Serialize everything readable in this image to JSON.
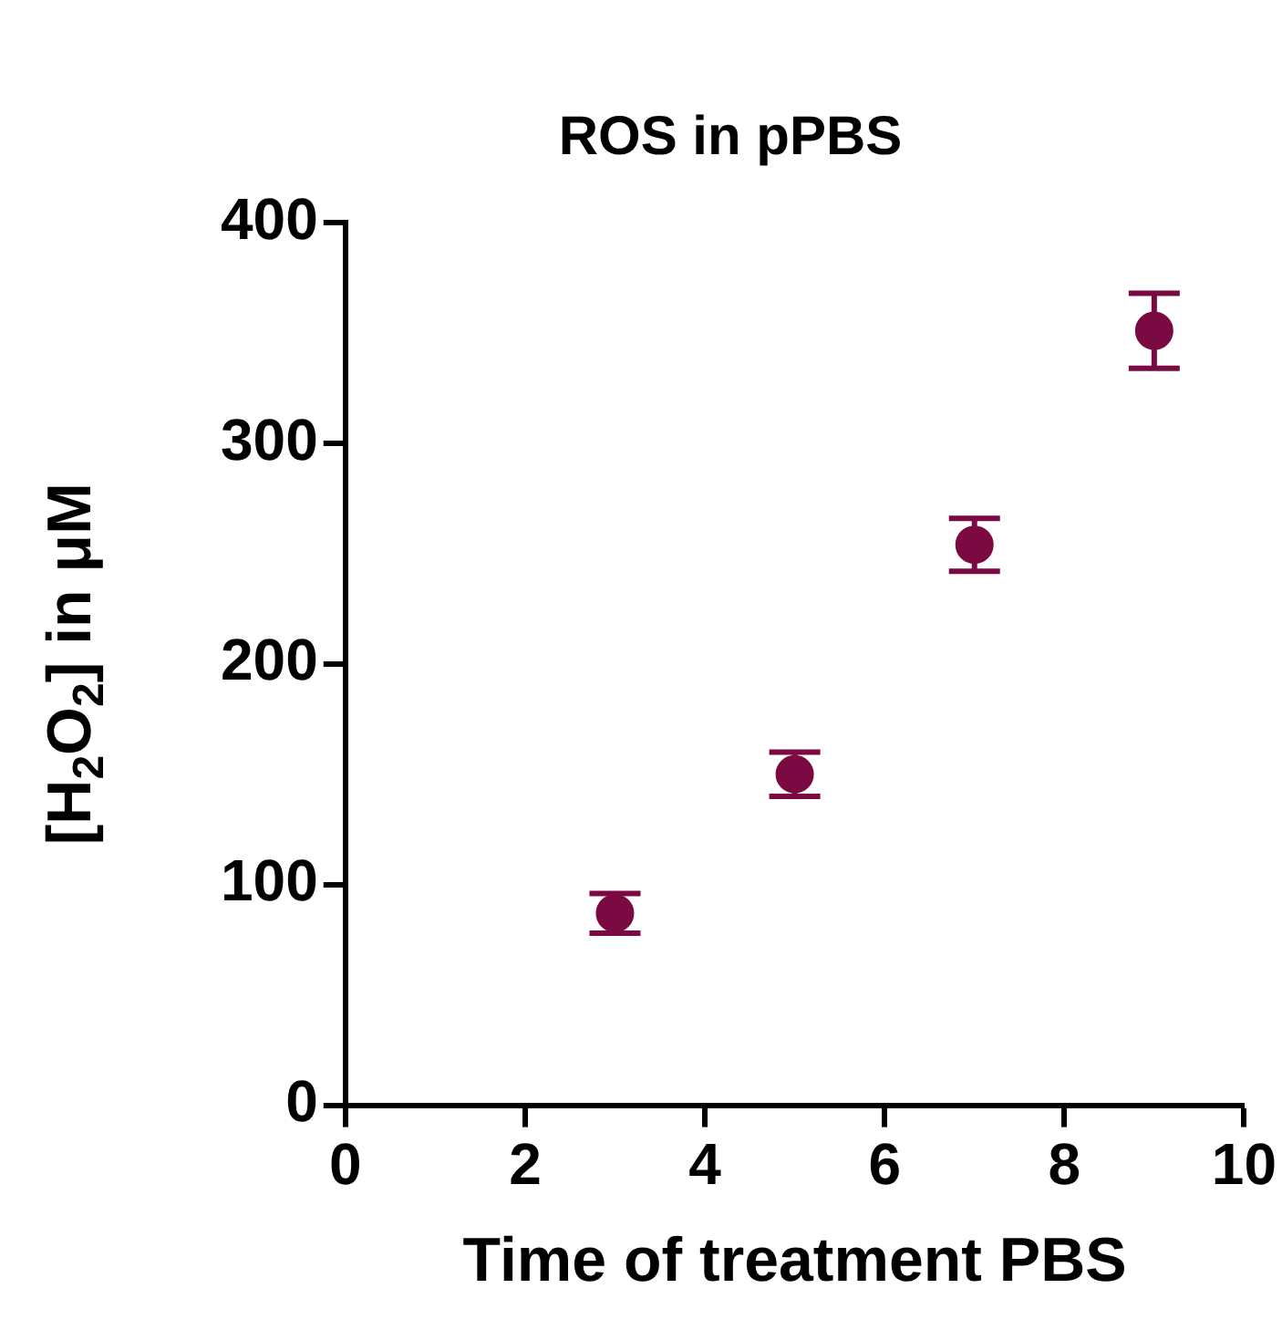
{
  "chart_data": {
    "type": "scatter",
    "title": "ROS in pPBS",
    "xlabel": "Time of treatment PBS",
    "ylabel": "[H$_{2}$O$_{2}$] in μM",
    "x": [
      3,
      5,
      7,
      9
    ],
    "series": [
      {
        "color": "#7b0a42",
        "values": [
          87,
          150,
          254,
          351
        ],
        "errors": [
          9,
          10,
          12,
          17
        ]
      }
    ],
    "xlim": [
      0,
      10
    ],
    "xticks": [
      0,
      2,
      4,
      6,
      8,
      10
    ],
    "ylim": [
      0,
      400
    ],
    "yticks": [
      0,
      100,
      200,
      300,
      400
    ],
    "marker": "circle",
    "legend": false,
    "grid": false
  }
}
